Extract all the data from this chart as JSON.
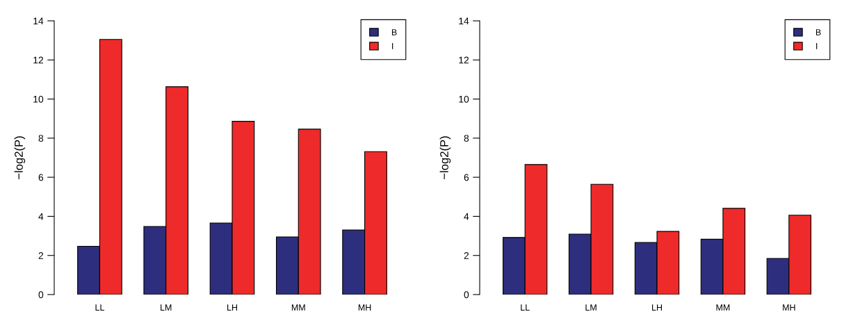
{
  "chart_data": [
    {
      "type": "bar",
      "ylabel": "−log2(P)",
      "categories": [
        "LL",
        "LM",
        "LH",
        "MM",
        "MH"
      ],
      "series": [
        {
          "name": "B",
          "color": "#2e2e7e",
          "values": [
            2.47,
            3.48,
            3.66,
            2.95,
            3.3
          ]
        },
        {
          "name": "I",
          "color": "#ee2a2a",
          "values": [
            13.05,
            10.63,
            8.86,
            8.46,
            7.31
          ]
        }
      ],
      "ylim": [
        0,
        14
      ],
      "yticks": [
        0,
        2,
        4,
        6,
        8,
        10,
        12,
        14
      ],
      "legend": "top right",
      "grid": false
    },
    {
      "type": "bar",
      "ylabel": "−log2(P)",
      "categories": [
        "LL",
        "LM",
        "LH",
        "MM",
        "MH"
      ],
      "series": [
        {
          "name": "B",
          "color": "#2e2e7e",
          "values": [
            2.92,
            3.09,
            2.66,
            2.83,
            1.85
          ]
        },
        {
          "name": "I",
          "color": "#ee2a2a",
          "values": [
            6.65,
            5.64,
            3.23,
            4.41,
            4.06
          ]
        }
      ],
      "ylim": [
        0,
        14
      ],
      "yticks": [
        0,
        2,
        4,
        6,
        8,
        10,
        12,
        14
      ],
      "legend": "top right",
      "grid": false
    }
  ]
}
